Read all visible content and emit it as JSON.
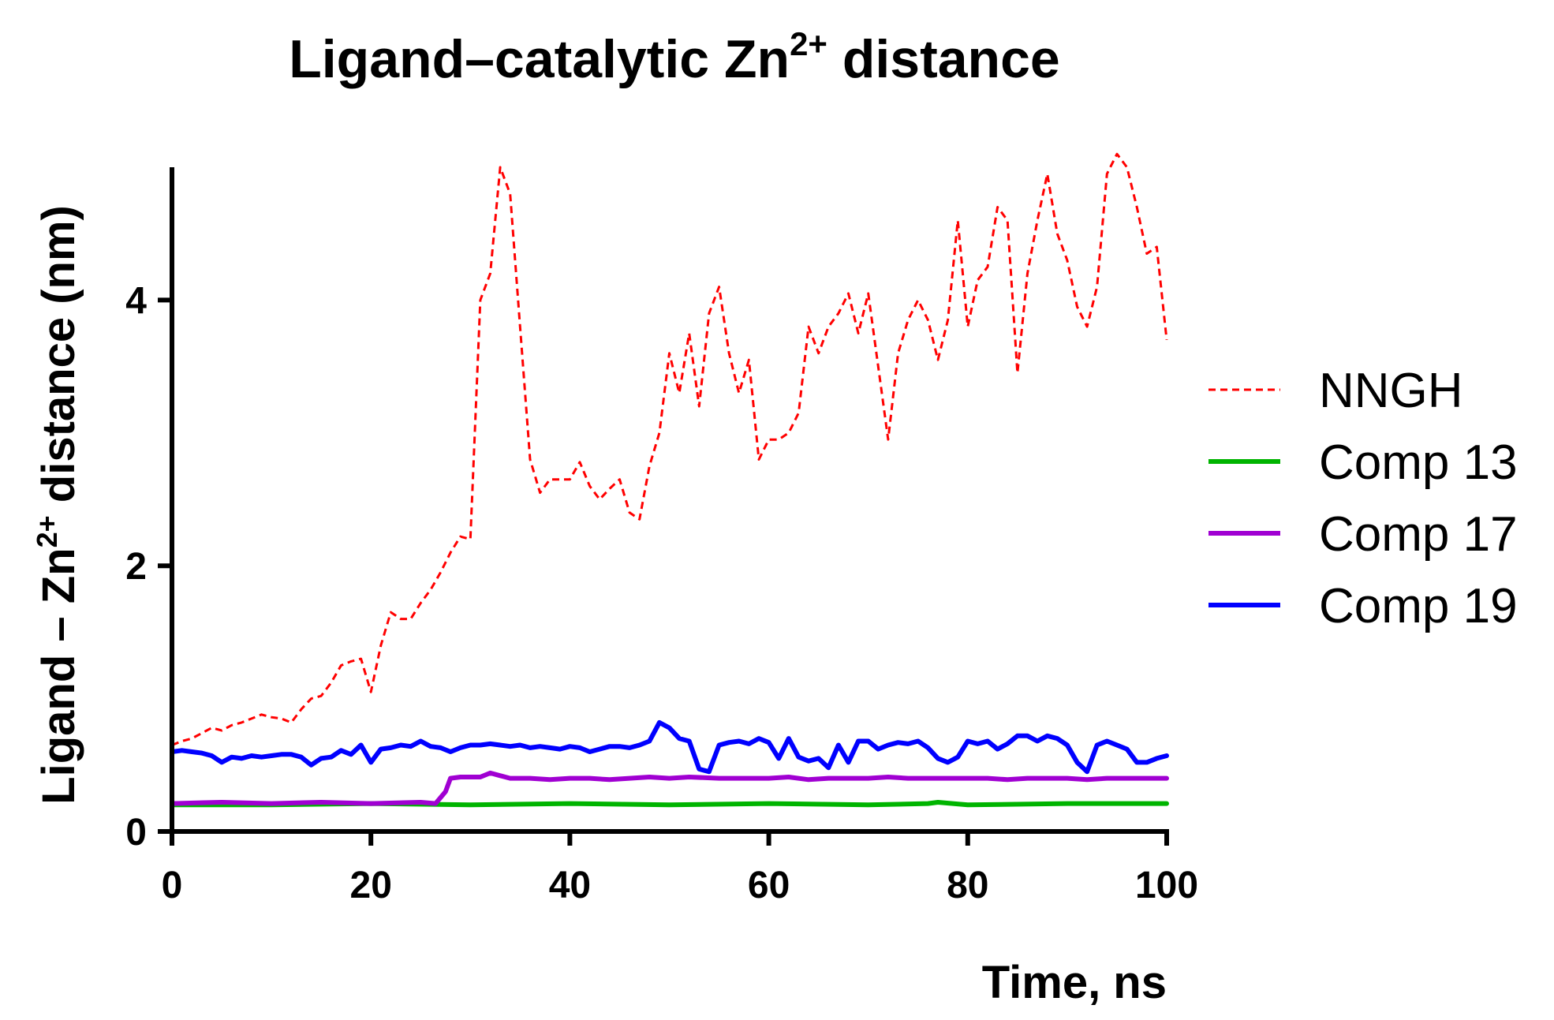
{
  "chart_data": {
    "type": "line",
    "title": "Ligand–catalytic Zn",
    "title_sup": "2+",
    "title_suffix": " distance",
    "xlabel": "Time, ns",
    "ylabel_prefix": "Ligand – Zn",
    "ylabel_sup": "2+",
    "ylabel_suffix": " distance (nm)",
    "xlim": [
      0,
      100
    ],
    "ylim": [
      0,
      5
    ],
    "xticks": [
      0,
      20,
      40,
      60,
      80,
      100
    ],
    "yticks": [
      0,
      2,
      4
    ],
    "grid": false,
    "legend_position": "right",
    "series": [
      {
        "name": "NNGH",
        "color": "#ff0000",
        "style": "dashed",
        "x": [
          0,
          1,
          2,
          3,
          4,
          5,
          6,
          7,
          8,
          9,
          10,
          11,
          12,
          13,
          14,
          15,
          16,
          17,
          18,
          19,
          20,
          21,
          22,
          23,
          24,
          25,
          26,
          27,
          28,
          29,
          30,
          31,
          32,
          33,
          34,
          35,
          36,
          37,
          38,
          39,
          40,
          41,
          42,
          43,
          44,
          45,
          46,
          47,
          48,
          49,
          50,
          51,
          52,
          53,
          54,
          55,
          56,
          57,
          58,
          59,
          60,
          61,
          62,
          63,
          64,
          65,
          66,
          67,
          68,
          69,
          70,
          71,
          72,
          73,
          74,
          75,
          76,
          77,
          78,
          79,
          80,
          81,
          82,
          83,
          84,
          85,
          86,
          87,
          88,
          89,
          90,
          91,
          92,
          93,
          94,
          95,
          96,
          97,
          98,
          99,
          100
        ],
        "y": [
          0.65,
          0.68,
          0.7,
          0.74,
          0.78,
          0.76,
          0.8,
          0.82,
          0.85,
          0.88,
          0.86,
          0.85,
          0.82,
          0.92,
          1.0,
          1.02,
          1.12,
          1.25,
          1.28,
          1.3,
          1.05,
          1.4,
          1.65,
          1.6,
          1.6,
          1.72,
          1.82,
          1.95,
          2.1,
          2.22,
          2.2,
          4.0,
          4.2,
          5.0,
          4.8,
          3.8,
          2.8,
          2.55,
          2.65,
          2.65,
          2.65,
          2.78,
          2.6,
          2.5,
          2.58,
          2.65,
          2.4,
          2.35,
          2.75,
          3.0,
          3.6,
          3.3,
          3.75,
          3.2,
          3.9,
          4.1,
          3.6,
          3.3,
          3.55,
          2.8,
          2.95,
          2.95,
          3.0,
          3.15,
          3.8,
          3.6,
          3.8,
          3.9,
          4.05,
          3.75,
          4.05,
          3.5,
          2.95,
          3.6,
          3.85,
          4.0,
          3.85,
          3.55,
          3.85,
          4.6,
          3.8,
          4.15,
          4.25,
          4.7,
          4.6,
          3.45,
          4.2,
          4.6,
          4.95,
          4.5,
          4.3,
          3.95,
          3.8,
          4.1,
          4.95,
          5.1,
          5.0,
          4.7,
          4.35,
          4.4,
          3.7
        ]
      },
      {
        "name": "Comp 13",
        "color": "#00b400",
        "style": "solid",
        "x": [
          0,
          10,
          20,
          30,
          40,
          50,
          60,
          70,
          76,
          77,
          80,
          90,
          100
        ],
        "y": [
          0.2,
          0.2,
          0.21,
          0.2,
          0.21,
          0.2,
          0.21,
          0.2,
          0.21,
          0.22,
          0.2,
          0.21,
          0.21
        ]
      },
      {
        "name": "Comp 17",
        "color": "#a000d2",
        "style": "solid",
        "x": [
          0,
          5,
          10,
          15,
          20,
          25,
          26.5,
          27.5,
          28,
          29,
          30,
          31,
          32,
          33,
          34,
          36,
          38,
          40,
          42,
          44,
          46,
          48,
          50,
          52,
          55,
          58,
          60,
          62,
          64,
          66,
          68,
          70,
          72,
          74,
          76,
          78,
          80,
          82,
          84,
          86,
          88,
          90,
          92,
          94,
          96,
          98,
          100
        ],
        "y": [
          0.21,
          0.22,
          0.21,
          0.22,
          0.21,
          0.22,
          0.21,
          0.3,
          0.4,
          0.41,
          0.41,
          0.41,
          0.44,
          0.42,
          0.4,
          0.4,
          0.39,
          0.4,
          0.4,
          0.39,
          0.4,
          0.41,
          0.4,
          0.41,
          0.4,
          0.4,
          0.4,
          0.41,
          0.39,
          0.4,
          0.4,
          0.4,
          0.41,
          0.4,
          0.4,
          0.4,
          0.4,
          0.4,
          0.39,
          0.4,
          0.4,
          0.4,
          0.39,
          0.4,
          0.4,
          0.4,
          0.4
        ]
      },
      {
        "name": "Comp 19",
        "color": "#0000ff",
        "style": "solid",
        "x": [
          0,
          1,
          2,
          3,
          4,
          5,
          6,
          7,
          8,
          9,
          10,
          11,
          12,
          13,
          14,
          15,
          16,
          17,
          18,
          19,
          20,
          21,
          22,
          23,
          24,
          25,
          26,
          27,
          28,
          29,
          30,
          31,
          32,
          33,
          34,
          35,
          36,
          37,
          38,
          39,
          40,
          41,
          42,
          43,
          44,
          45,
          46,
          47,
          48,
          49,
          50,
          51,
          52,
          53,
          54,
          55,
          56,
          57,
          58,
          59,
          60,
          61,
          62,
          63,
          64,
          65,
          66,
          67,
          68,
          69,
          70,
          71,
          72,
          73,
          74,
          75,
          76,
          77,
          78,
          79,
          80,
          81,
          82,
          83,
          84,
          85,
          86,
          87,
          88,
          89,
          90,
          91,
          92,
          93,
          94,
          95,
          96,
          97,
          98,
          99,
          100
        ],
        "y": [
          0.6,
          0.61,
          0.6,
          0.59,
          0.57,
          0.52,
          0.56,
          0.55,
          0.57,
          0.56,
          0.57,
          0.58,
          0.58,
          0.56,
          0.5,
          0.55,
          0.56,
          0.61,
          0.58,
          0.65,
          0.52,
          0.62,
          0.63,
          0.65,
          0.64,
          0.68,
          0.64,
          0.63,
          0.6,
          0.63,
          0.65,
          0.65,
          0.66,
          0.65,
          0.64,
          0.65,
          0.63,
          0.64,
          0.63,
          0.62,
          0.64,
          0.63,
          0.6,
          0.62,
          0.64,
          0.64,
          0.63,
          0.65,
          0.68,
          0.82,
          0.78,
          0.7,
          0.68,
          0.47,
          0.45,
          0.65,
          0.67,
          0.68,
          0.66,
          0.7,
          0.67,
          0.55,
          0.7,
          0.56,
          0.53,
          0.55,
          0.48,
          0.65,
          0.52,
          0.68,
          0.68,
          0.62,
          0.65,
          0.67,
          0.66,
          0.68,
          0.63,
          0.55,
          0.52,
          0.56,
          0.68,
          0.66,
          0.68,
          0.62,
          0.66,
          0.72,
          0.72,
          0.68,
          0.72,
          0.7,
          0.65,
          0.52,
          0.45,
          0.65,
          0.68,
          0.65,
          0.62,
          0.52,
          0.52,
          0.55,
          0.57
        ]
      }
    ]
  }
}
